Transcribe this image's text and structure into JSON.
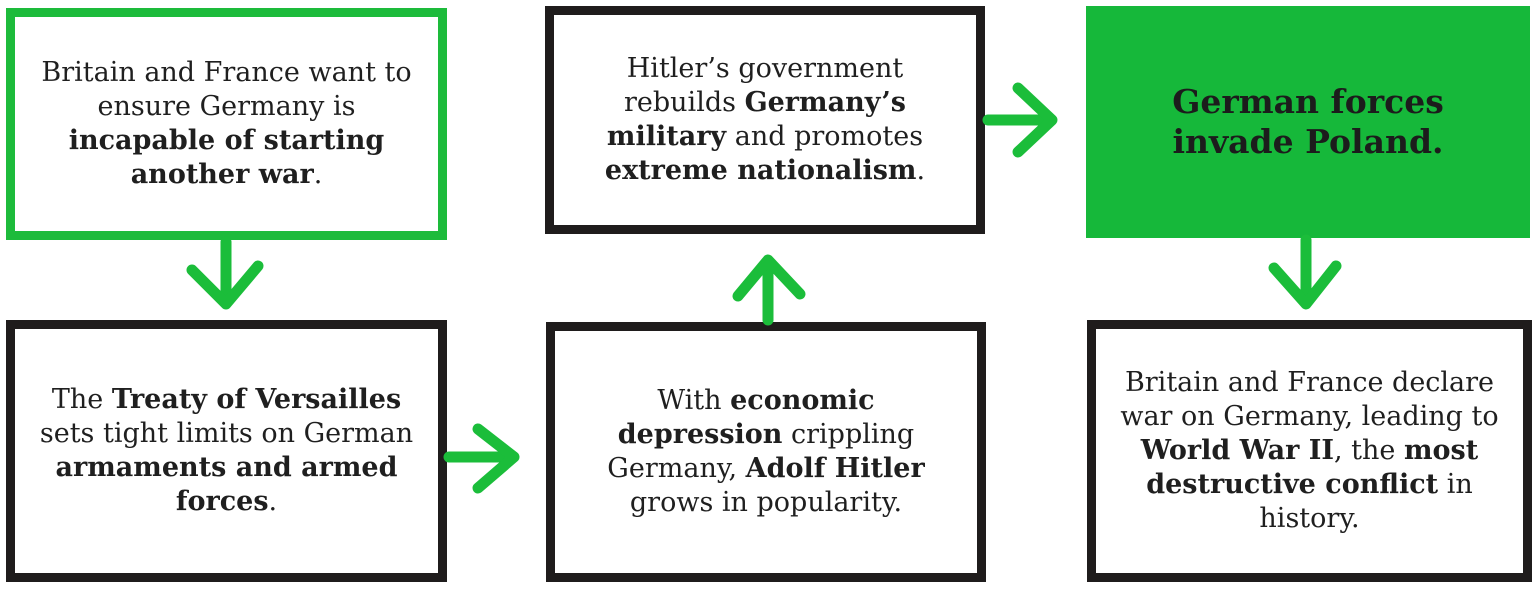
{
  "boxes": {
    "b1": {
      "t1": "Britain and France want to ensure Germany is ",
      "b1": "incapable of starting another war",
      "t2": "."
    },
    "b2": {
      "t1": "The ",
      "b1": "Treaty of Versailles",
      "t2": " sets tight limits on German ",
      "b2": "armaments and armed forces",
      "t3": "."
    },
    "b3": {
      "t1": "With ",
      "b1": "economic depression",
      "t2": " crippling Germany, ",
      "b2": "Adolf Hitler",
      "t3": " grows in popularity."
    },
    "b4": {
      "t1": "Hitler’s government rebuilds ",
      "b1": "Germany’s military",
      "t2": " and promotes ",
      "b2": "extreme nationalism",
      "t3": "."
    },
    "b5": {
      "b1": "German forces invade Poland."
    },
    "b6": {
      "t1": "Britain and France declare war on Germany, leading to ",
      "b1": "World War II",
      "t2": ", the ",
      "b2": "most destructive conflict",
      "t3": " in history."
    }
  },
  "colors": {
    "accent_green": "#16b83a",
    "border_dark": "#1f1c1c"
  },
  "arrows": [
    {
      "from": "b1",
      "to": "b2",
      "direction": "down"
    },
    {
      "from": "b2",
      "to": "b3",
      "direction": "right"
    },
    {
      "from": "b3",
      "to": "b4",
      "direction": "up"
    },
    {
      "from": "b4",
      "to": "b5",
      "direction": "right"
    },
    {
      "from": "b5",
      "to": "b6",
      "direction": "down"
    }
  ]
}
